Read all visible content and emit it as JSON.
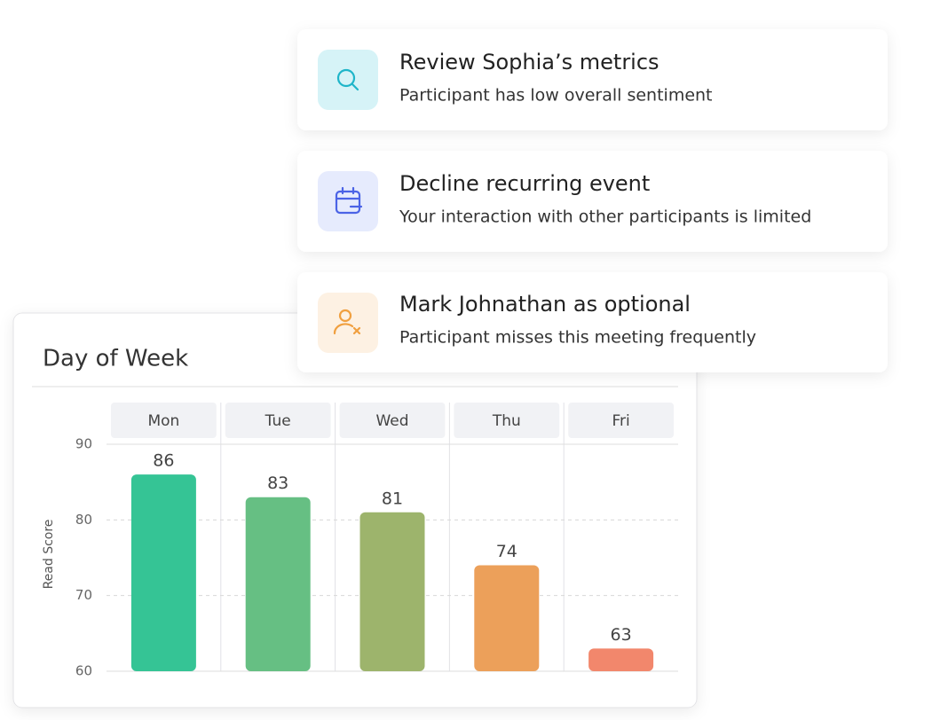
{
  "cards": [
    {
      "title": "Review Sophia’s metrics",
      "subtitle": "Participant has low overall sentiment"
    },
    {
      "title": "Decline recurring event",
      "subtitle": "Your interaction with other participants is limited"
    },
    {
      "title": "Mark Johnathan as optional",
      "subtitle": "Participant misses this meeting frequently"
    }
  ],
  "chart_data": {
    "type": "bar",
    "title": "Day of Week",
    "y_label": "Read Score",
    "categories": [
      "Mon",
      "Tue",
      "Wed",
      "Thu",
      "Fri"
    ],
    "values": [
      86,
      83,
      81,
      74,
      63
    ],
    "colors": [
      "#35c495",
      "#66bf83",
      "#9db46c",
      "#eca05a",
      "#f2876c"
    ],
    "ylim": [
      60,
      90
    ],
    "yticks": [
      60,
      70,
      80,
      90
    ],
    "grid": true
  }
}
